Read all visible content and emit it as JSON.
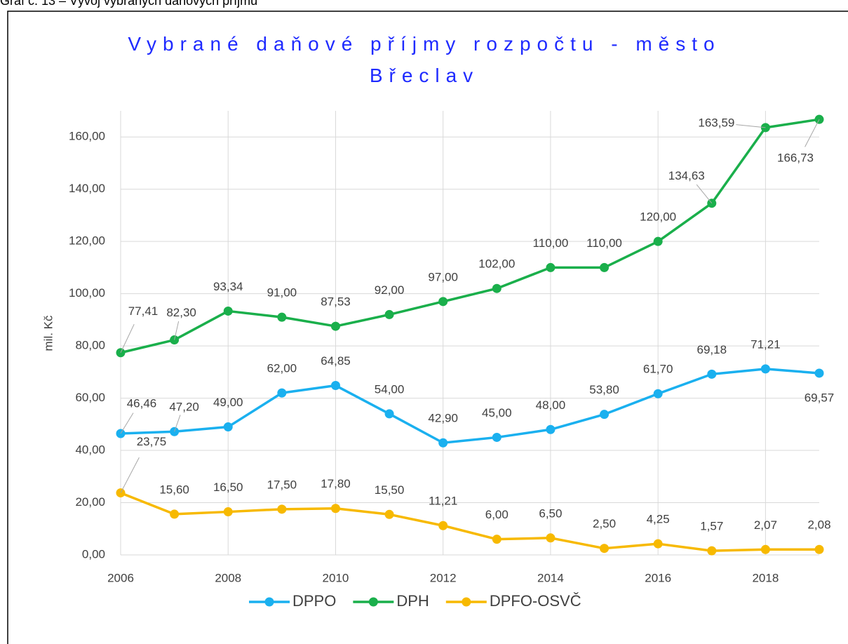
{
  "caption": "Graf č. 13 – Vývoj vybraných daňových příjmů",
  "chart_data": {
    "type": "line",
    "title": "Vybrané daňové příjmy rozpočtu - město Břeclav",
    "y_label": "mil. Kč",
    "x": [
      2006,
      2007,
      2008,
      2009,
      2010,
      2011,
      2012,
      2013,
      2014,
      2015,
      2016,
      2017,
      2018,
      2019
    ],
    "xlim": [
      2006,
      2019
    ],
    "xticks": [
      2006,
      2008,
      2010,
      2012,
      2014,
      2016,
      2018
    ],
    "ylim": [
      0,
      170
    ],
    "yticks": [
      {
        "value": 0,
        "label": "0,00"
      },
      {
        "value": 20,
        "label": "20,00"
      },
      {
        "value": 40,
        "label": "40,00"
      },
      {
        "value": 60,
        "label": "60,00"
      },
      {
        "value": 80,
        "label": "80,00"
      },
      {
        "value": 100,
        "label": "100,00"
      },
      {
        "value": 120,
        "label": "120,00"
      },
      {
        "value": 140,
        "label": "140,00"
      },
      {
        "value": 160,
        "label": "160,00"
      }
    ],
    "grid": true,
    "legend": "bottom",
    "series": [
      {
        "name": "DPPO",
        "color": "#1ab0ef",
        "values": [
          46.46,
          47.2,
          49.0,
          62.0,
          64.85,
          54.0,
          42.9,
          45.0,
          48.0,
          53.8,
          61.7,
          69.18,
          71.21,
          69.57
        ],
        "value_labels": [
          "46,46",
          "47,20",
          "49,00",
          "62,00",
          "64,85",
          "54,00",
          "42,90",
          "45,00",
          "48,00",
          "53,80",
          "61,70",
          "69,18",
          "71,21",
          "69,57"
        ]
      },
      {
        "name": "DPH",
        "color": "#1aaf4b",
        "values": [
          77.41,
          82.3,
          93.34,
          91.0,
          87.53,
          92.0,
          97.0,
          102.0,
          110.0,
          110.0,
          120.0,
          134.63,
          163.59,
          166.73
        ],
        "value_labels": [
          "77,41",
          "82,30",
          "93,34",
          "91,00",
          "87,53",
          "92,00",
          "97,00",
          "102,00",
          "110,00",
          "110,00",
          "120,00",
          "134,63",
          "163,59",
          "166,73"
        ]
      },
      {
        "name": "DPFO-OSVČ",
        "color": "#f7b900",
        "values": [
          23.75,
          15.6,
          16.5,
          17.5,
          17.8,
          15.5,
          11.21,
          6.0,
          6.5,
          2.5,
          4.25,
          1.57,
          2.07,
          2.08
        ],
        "value_labels": [
          "23,75",
          "15,60",
          "16,50",
          "17,50",
          "17,80",
          "15,50",
          "11,21",
          "6,00",
          "6,50",
          "2,50",
          "4,25",
          "1,57",
          "2,07",
          "2,08"
        ]
      }
    ]
  }
}
